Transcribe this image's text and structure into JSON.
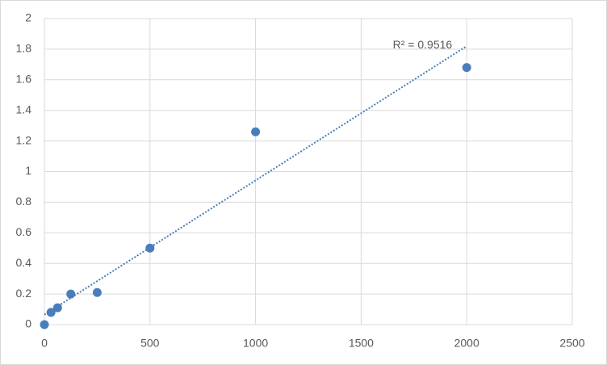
{
  "chart_data": {
    "type": "scatter",
    "x": [
      0,
      31.25,
      62.5,
      125,
      250,
      500,
      1000,
      2000
    ],
    "values": [
      0,
      0.08,
      0.11,
      0.2,
      0.21,
      0.5,
      1.26,
      1.68
    ],
    "color": "#4a7ebb",
    "trendline": {
      "x": [
        0,
        2000
      ],
      "values": [
        0.065,
        1.82
      ],
      "label": "R² = 0.9516",
      "color": "#4a7ebb"
    },
    "xlim": [
      0,
      2500
    ],
    "xticks": [
      0,
      500,
      1000,
      1500,
      2000,
      2500
    ],
    "ylim": [
      0,
      2
    ],
    "yticks": [
      0,
      0.2,
      0.4,
      0.6,
      0.8,
      1,
      1.2,
      1.4,
      1.6,
      1.8,
      2
    ],
    "grid": true
  }
}
